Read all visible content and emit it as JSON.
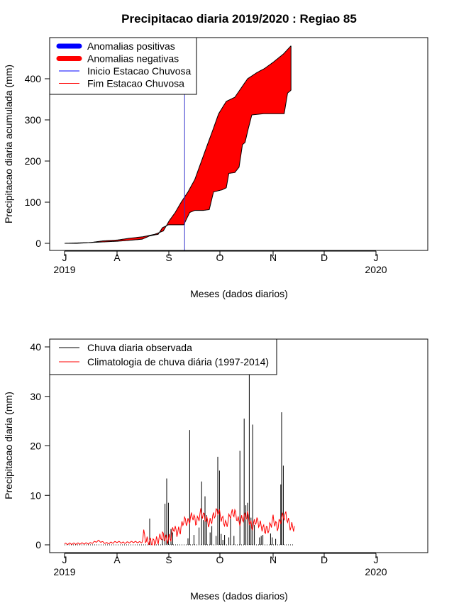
{
  "chart_data": [
    {
      "type": "area",
      "title": "Precipitacao diaria 2019/2020 : Regiao 85",
      "xlabel": "Meses (dados diarios)",
      "ylabel": "Precipitacao diaria acumulada (mm)",
      "x_ticks": [
        "J",
        "A",
        "S",
        "O",
        "N",
        "D",
        "J"
      ],
      "x_year_labels": [
        {
          "tick": 0,
          "label": "2019"
        },
        {
          "tick": 6,
          "label": "2020"
        }
      ],
      "y_ticks": [
        0,
        100,
        200,
        300,
        400
      ],
      "ylim": [
        0,
        480
      ],
      "legend": [
        {
          "label": "Anomalias positivas",
          "color": "#0000ff",
          "style": "thick"
        },
        {
          "label": "Anomalias negativas",
          "color": "#ff0000",
          "style": "thick"
        },
        {
          "label": "Inicio Estacao Chuvosa",
          "color": "#0000ff",
          "style": "thin"
        },
        {
          "label": "Fim Estacao Chuvosa",
          "color": "#ff0000",
          "style": "thin"
        }
      ],
      "series": [
        {
          "name": "Climatologia acumulada",
          "x": [
            0,
            15,
            31,
            45,
            62,
            75,
            92,
            106,
            116,
            123,
            130,
            137,
            145,
            153,
            160,
            167,
            175,
            181,
            190,
            200,
            205,
            215,
            226,
            235,
            245,
            257,
            266
          ],
          "values": [
            0,
            0,
            2,
            6,
            8,
            12,
            16,
            22,
            30,
            55,
            75,
            100,
            125,
            155,
            195,
            235,
            280,
            315,
            345,
            355,
            370,
            400,
            415,
            425,
            440,
            460,
            480
          ]
        },
        {
          "name": "Observada acumulada",
          "x": [
            0,
            31,
            62,
            80,
            91,
            100,
            110,
            115,
            122,
            128,
            136,
            140,
            147,
            153,
            163,
            170,
            175,
            185,
            190,
            193,
            200,
            205,
            209,
            212,
            216,
            220,
            234,
            245,
            258,
            262,
            266
          ],
          "values": [
            0,
            2,
            5,
            8,
            10,
            18,
            22,
            38,
            45,
            45,
            45,
            45,
            75,
            80,
            80,
            82,
            125,
            130,
            135,
            170,
            172,
            185,
            240,
            245,
            280,
            312,
            315,
            315,
            315,
            365,
            372
          ]
        }
      ],
      "inicio_estacao_chuvosa_day": 141
    },
    {
      "type": "bar",
      "xlabel": "Meses (dados diarios)",
      "ylabel": "Precipitacao diaria (mm)",
      "x_ticks": [
        "J",
        "A",
        "S",
        "O",
        "N",
        "D",
        "J"
      ],
      "x_year_labels": [
        {
          "tick": 0,
          "label": "2019"
        },
        {
          "tick": 6,
          "label": "2020"
        }
      ],
      "y_ticks": [
        0,
        10,
        20,
        30,
        40
      ],
      "ylim": [
        0,
        42
      ],
      "legend": [
        {
          "label": "Chuva diaria observada",
          "color": "#000000",
          "style": "thin"
        },
        {
          "label": "Climatologia de chuva diária (1997-2014)",
          "color": "#ff0000",
          "style": "thin"
        }
      ],
      "observed_bars": {
        "days": [
          100,
          115,
          118,
          120,
          122,
          125,
          127,
          145,
          147,
          152,
          158,
          161,
          163,
          165,
          167,
          171,
          173,
          178,
          180,
          182,
          184,
          186,
          188,
          193,
          195,
          199,
          206,
          211,
          213,
          215,
          217,
          219,
          221,
          223,
          229,
          231,
          233,
          242,
          244,
          248,
          254,
          255,
          257
        ],
        "values": [
          5.3,
          1.2,
          8.3,
          13.4,
          8.5,
          3.2,
          2.5,
          1.3,
          23.2,
          2.0,
          3.5,
          12.8,
          5.0,
          9.8,
          6.0,
          2.5,
          3.8,
          1.8,
          17.8,
          15.0,
          2.2,
          1.0,
          2.0,
          1.5,
          5.5,
          1.8,
          19.0,
          25.5,
          8.0,
          8.5,
          40.0,
          5.5,
          24.3,
          4.0,
          1.5,
          1.8,
          2.0,
          2.3,
          1.5,
          1.2,
          12.2,
          26.8,
          16.0
        ]
      },
      "climatology_series": {
        "name": "Climatologia de chuva diária (1997-2014)",
        "x": [
          0,
          30,
          40,
          45,
          50,
          62,
          70,
          80,
          90,
          93,
          96,
          100,
          105,
          110,
          115,
          120,
          125,
          128,
          132,
          136,
          140,
          145,
          150,
          155,
          160,
          165,
          170,
          175,
          180,
          185,
          190,
          195,
          200,
          205,
          210,
          215,
          220,
          225,
          230,
          235,
          240,
          245,
          250,
          255,
          260,
          265,
          270
        ],
        "values": [
          0.2,
          0.3,
          0.8,
          0.5,
          0.3,
          0.6,
          0.4,
          0.6,
          0.5,
          2.3,
          0.8,
          0.6,
          0.5,
          1.0,
          2.0,
          1.0,
          1.5,
          3.5,
          2.5,
          3.0,
          5.0,
          4.5,
          6.0,
          4.5,
          6.5,
          5.5,
          4.2,
          5.8,
          7.0,
          5.2,
          4.0,
          6.2,
          6.5,
          4.5,
          5.5,
          6.0,
          3.5,
          5.0,
          4.0,
          3.0,
          3.2,
          5.2,
          3.5,
          5.5,
          6.0,
          3.8,
          3.5
        ]
      }
    }
  ]
}
